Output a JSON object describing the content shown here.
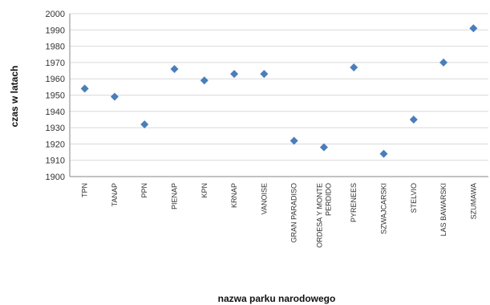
{
  "chart_data": {
    "type": "scatter",
    "title": "",
    "xlabel": "nazwa parku narodowego",
    "ylabel": "czas w latach",
    "ylim": [
      1900,
      2000
    ],
    "yticks": [
      1900,
      1910,
      1920,
      1930,
      1940,
      1950,
      1960,
      1970,
      1980,
      1990,
      2000
    ],
    "grid": true,
    "legend": "none",
    "marker": "diamond",
    "color": "#4a7ebb",
    "categories": [
      "TPN",
      "TANAP",
      "PPN",
      "PIENAP",
      "KPN",
      "KRNAP",
      "VANOISE",
      "GRAN PARADISO",
      "ORDESA Y MONTE PERDIDO",
      "PYRENEES",
      "SZWAJCARSKI",
      "STELVIO",
      "LAS BAWARSKI",
      "SZUMAWA"
    ],
    "category_lines": [
      [
        "TPN"
      ],
      [
        "TANAP"
      ],
      [
        "PPN"
      ],
      [
        "PIENAP"
      ],
      [
        "KPN"
      ],
      [
        "KRNAP"
      ],
      [
        "VANOISE"
      ],
      [
        "GRAN PARADISO"
      ],
      [
        "ORDESA Y MONTE",
        "PERDIDO"
      ],
      [
        "PYRENEES"
      ],
      [
        "SZWAJCARSKI"
      ],
      [
        "STELVIO"
      ],
      [
        "LAS BAWARSKI"
      ],
      [
        "SZUMAWA"
      ]
    ],
    "values": [
      1954,
      1949,
      1932,
      1966,
      1959,
      1963,
      1963,
      1922,
      1918,
      1967,
      1914,
      1935,
      1970,
      1991
    ]
  }
}
